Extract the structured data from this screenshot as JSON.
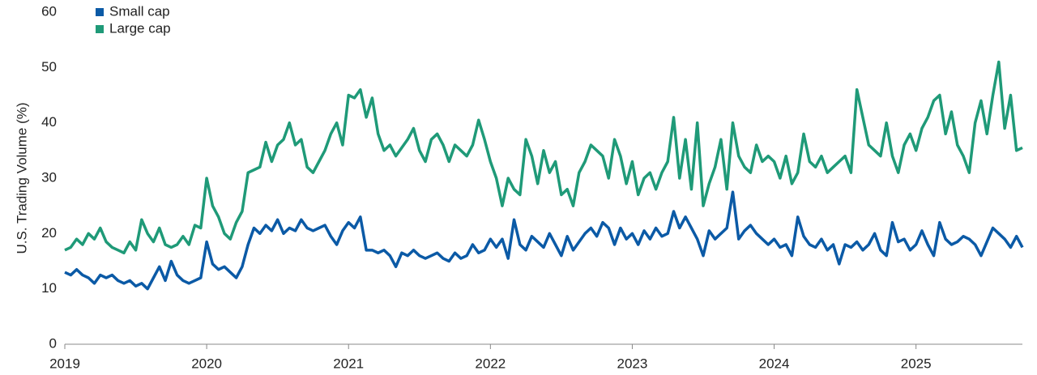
{
  "chart_data": {
    "type": "line",
    "y_label": "U.S. Trading Volume (%)",
    "categories": [
      "2019",
      null,
      null,
      null,
      null,
      null,
      null,
      null,
      null,
      null,
      null,
      null,
      null,
      null,
      null,
      null,
      null,
      null,
      null,
      null,
      null,
      null,
      null,
      null,
      "2020",
      null,
      null,
      null,
      null,
      null,
      null,
      null,
      null,
      null,
      null,
      null,
      null,
      null,
      null,
      null,
      null,
      null,
      null,
      null,
      null,
      null,
      null,
      null,
      "2021",
      null,
      null,
      null,
      null,
      null,
      null,
      null,
      null,
      null,
      null,
      null,
      null,
      null,
      null,
      null,
      null,
      null,
      null,
      null,
      null,
      null,
      null,
      null,
      "2022",
      null,
      null,
      null,
      null,
      null,
      null,
      null,
      null,
      null,
      null,
      null,
      null,
      null,
      null,
      null,
      null,
      null,
      null,
      null,
      null,
      null,
      null,
      null,
      "2023",
      null,
      null,
      null,
      null,
      null,
      null,
      null,
      null,
      null,
      null,
      null,
      null,
      null,
      null,
      null,
      null,
      null,
      null,
      null,
      null,
      null,
      null,
      null,
      "2024",
      null,
      null,
      null,
      null,
      null,
      null,
      null,
      null,
      null,
      null,
      null,
      null,
      null,
      null,
      null,
      null,
      null,
      null,
      null,
      null,
      null,
      null,
      null,
      "2025",
      null,
      null,
      null,
      null,
      null,
      null,
      null,
      null,
      null,
      null,
      null,
      null,
      null,
      null,
      null,
      null,
      null,
      null
    ],
    "series": [
      {
        "name": "Small cap",
        "color": "#0b5aa6",
        "values": [
          13,
          12.5,
          13.5,
          12.5,
          12,
          11,
          12.5,
          12,
          12.5,
          11.5,
          11,
          11.5,
          10.5,
          11,
          10,
          12,
          14,
          11.5,
          15,
          12.5,
          11.5,
          11,
          11.5,
          12,
          18.5,
          14.5,
          13.5,
          14,
          13,
          12,
          14,
          18,
          21,
          20,
          21.5,
          20.5,
          22.5,
          20,
          21,
          20.5,
          22.5,
          21,
          20.5,
          21,
          21.5,
          19.5,
          18,
          20.5,
          22,
          21,
          23,
          17,
          17,
          16.5,
          17,
          16,
          14,
          16.5,
          16,
          17,
          16,
          15.5,
          16,
          16.5,
          15.5,
          15,
          16.5,
          15.5,
          16,
          18,
          16.5,
          17,
          19,
          17.5,
          19,
          15.5,
          22.5,
          18,
          17,
          19.5,
          18.5,
          17.5,
          20,
          18,
          16,
          19.5,
          17,
          18.5,
          20,
          21,
          19.5,
          22,
          21,
          18,
          21,
          19,
          20,
          18,
          20.5,
          19,
          21,
          19.5,
          20,
          24,
          21,
          23,
          21,
          19,
          16,
          20.5,
          19,
          20,
          21,
          27.5,
          19,
          20.5,
          21.5,
          20,
          19,
          18,
          19,
          17.5,
          18,
          16,
          23,
          19.5,
          18,
          17.5,
          19,
          17,
          18,
          14.5,
          18,
          17.5,
          18.5,
          17,
          18,
          20,
          17,
          16,
          22,
          18.5,
          19,
          17,
          18,
          20.5,
          18,
          16,
          22,
          19,
          18,
          18.5,
          19.5,
          19,
          18,
          16,
          18.5,
          21,
          20,
          19,
          17.5,
          19.5,
          17.5
        ]
      },
      {
        "name": "Large cap",
        "color": "#1f9a78",
        "values": [
          17,
          17.5,
          19,
          18,
          20,
          19,
          21,
          18.5,
          17.5,
          17,
          16.5,
          18.5,
          17,
          22.5,
          20,
          18.5,
          21,
          18,
          17.5,
          18,
          19.5,
          18,
          21.5,
          21,
          30,
          25,
          23,
          20,
          19,
          22,
          24,
          31,
          31.5,
          32,
          36.5,
          33,
          36,
          37,
          40,
          36,
          37,
          32,
          31,
          33,
          35,
          38,
          40,
          36,
          45,
          44.5,
          46,
          41,
          44.5,
          38,
          35,
          36,
          34,
          35.5,
          37,
          39,
          35,
          33,
          37,
          38,
          36,
          33,
          36,
          35,
          34,
          36,
          40.5,
          37,
          33,
          30,
          25,
          30,
          28,
          27,
          37,
          34,
          29,
          35,
          31,
          33,
          27,
          28,
          25,
          31,
          33,
          36,
          35,
          34,
          30,
          37,
          34,
          29,
          33,
          27,
          30,
          31,
          28,
          31,
          33,
          41,
          30,
          37,
          28,
          40,
          25,
          29,
          32,
          37,
          28,
          40,
          34,
          32,
          31,
          36,
          33,
          34,
          33,
          30,
          34,
          29,
          31,
          38,
          33,
          32,
          34,
          31,
          32,
          33,
          34,
          31,
          46,
          41,
          36,
          35,
          34,
          40,
          34,
          31,
          36,
          38,
          35,
          39,
          41,
          44,
          45,
          38,
          42,
          36,
          34,
          31,
          40,
          44,
          38,
          45,
          51,
          39,
          45,
          35,
          35.5
        ]
      }
    ],
    "ylim": [
      0,
      60
    ],
    "yticks": [
      0,
      10,
      20,
      30,
      40,
      50,
      60
    ],
    "grid": false
  }
}
